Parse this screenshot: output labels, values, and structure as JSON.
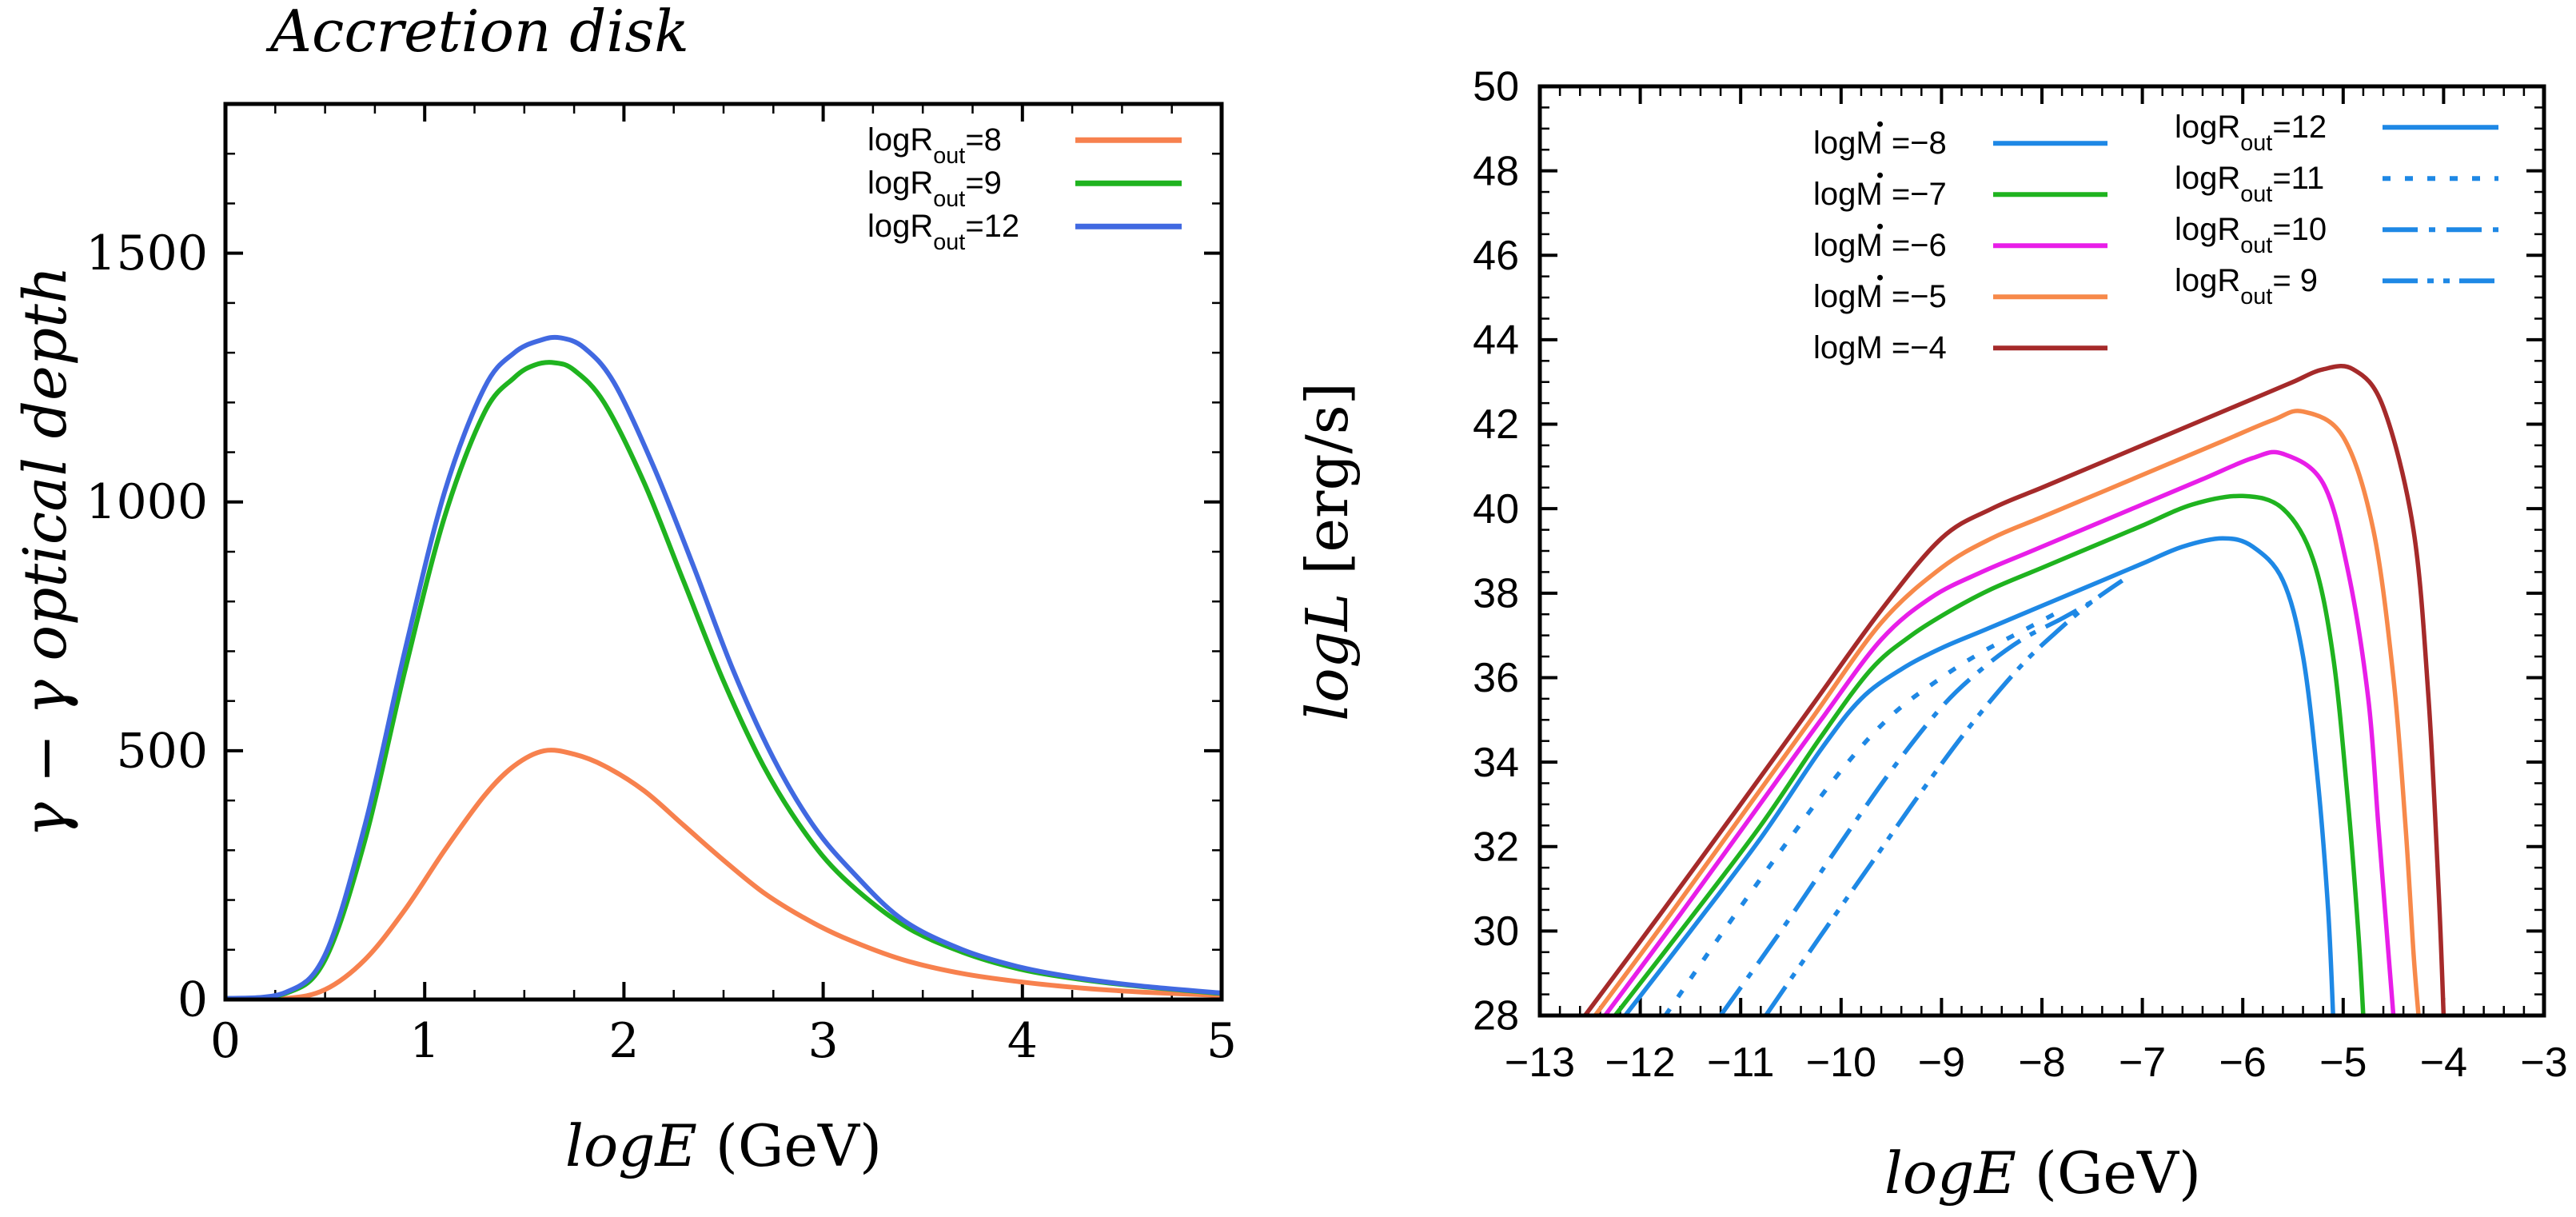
{
  "chart_data": [
    {
      "type": "line",
      "title": "Accretion disk",
      "xlabel_math": "logE",
      "xlabel_unit": " (GeV)",
      "ylabel": "γ − γ optical depth",
      "xlim": [
        0,
        5
      ],
      "ylim": [
        0,
        1800
      ],
      "xticks": [
        0,
        1,
        2,
        3,
        4,
        5
      ],
      "yticks": [
        0,
        500,
        1000,
        1500
      ],
      "legend_position": "top-right",
      "series": [
        {
          "name": "logRout=8",
          "legend_main": "logR",
          "legend_sub": "out",
          "legend_tail": "=8",
          "color": "#f7814e",
          "dash": "solid",
          "peak_x": 1.6,
          "peak_y": 500,
          "x": [
            0,
            0.3,
            0.5,
            0.7,
            0.9,
            1.1,
            1.3,
            1.45,
            1.6,
            1.75,
            1.9,
            2.1,
            2.3,
            2.5,
            2.7,
            2.9,
            3.1,
            3.4,
            3.7,
            4.0,
            4.3,
            4.6,
            5.0
          ],
          "y": [
            0,
            2,
            20,
            80,
            180,
            300,
            410,
            470,
            500,
            493,
            470,
            420,
            350,
            280,
            215,
            165,
            125,
            80,
            52,
            35,
            23,
            15,
            8
          ]
        },
        {
          "name": "logRout=9",
          "legend_main": "logR",
          "legend_sub": "out",
          "legend_tail": "=9",
          "color": "#1fb31f",
          "dash": "solid",
          "peak_x": 1.65,
          "peak_y": 1280,
          "x": [
            0,
            0.3,
            0.5,
            0.7,
            0.9,
            1.1,
            1.3,
            1.45,
            1.55,
            1.65,
            1.75,
            1.9,
            2.1,
            2.3,
            2.5,
            2.7,
            2.9,
            3.1,
            3.4,
            3.7,
            4.0,
            4.3,
            4.6,
            5.0
          ],
          "y": [
            2,
            12,
            80,
            320,
            660,
            970,
            1180,
            1250,
            1275,
            1280,
            1265,
            1200,
            1040,
            840,
            640,
            470,
            340,
            245,
            150,
            95,
            60,
            40,
            26,
            12
          ]
        },
        {
          "name": "logRout=12",
          "legend_main": "logR",
          "legend_sub": "out",
          "legend_tail": "=12",
          "color": "#4169e1",
          "dash": "solid",
          "peak_x": 1.68,
          "peak_y": 1330,
          "x": [
            0,
            0.3,
            0.5,
            0.7,
            0.9,
            1.1,
            1.3,
            1.45,
            1.58,
            1.68,
            1.8,
            1.95,
            2.15,
            2.35,
            2.55,
            2.75,
            2.95,
            3.15,
            3.4,
            3.7,
            4.0,
            4.3,
            4.6,
            5.0
          ],
          "y": [
            2,
            14,
            90,
            350,
            700,
            1020,
            1230,
            1300,
            1325,
            1330,
            1310,
            1240,
            1070,
            870,
            660,
            485,
            350,
            255,
            160,
            100,
            64,
            42,
            27,
            13
          ]
        }
      ]
    },
    {
      "type": "line",
      "title": "",
      "xlabel_math": "logE",
      "xlabel_unit": " (GeV)",
      "ylabel_math": "logL",
      "ylabel_unit": " [erg/s]",
      "xlim": [
        -13,
        -3
      ],
      "ylim": [
        28,
        50
      ],
      "xticks": [
        -13,
        -12,
        -11,
        -10,
        -9,
        -8,
        -7,
        -6,
        -5,
        -4,
        -3
      ],
      "xticklabels": [
        "−13",
        "−12",
        "−11",
        "−10",
        "−9",
        "−8",
        "−7",
        "−6",
        "−5",
        "−4",
        "−3"
      ],
      "yticks": [
        28,
        30,
        32,
        34,
        36,
        38,
        40,
        42,
        44,
        46,
        48,
        50
      ],
      "legend_position": "top",
      "series": [
        {
          "name": "logṀ =−8",
          "legend_main": "logM",
          "legend_tail": " =−8",
          "color": "#1e88e5",
          "dash": "solid",
          "x": [
            -12.15,
            -11.5,
            -10.8,
            -10.2,
            -9.8,
            -9.4,
            -9.0,
            -8.6,
            -8.2,
            -7.8,
            -7.4,
            -7.0,
            -6.6,
            -6.2,
            -5.9,
            -5.6,
            -5.4,
            -5.25,
            -5.15,
            -5.1
          ],
          "y": [
            28,
            30.0,
            32.2,
            34.3,
            35.5,
            36.2,
            36.7,
            37.1,
            37.5,
            37.9,
            38.3,
            38.7,
            39.1,
            39.3,
            39.1,
            38.3,
            36.5,
            33.5,
            30.5,
            28
          ]
        },
        {
          "name": "logṀ =−7",
          "legend_main": "logM",
          "legend_tail": " =−7",
          "color": "#1fb31f",
          "dash": "solid",
          "x": [
            -12.25,
            -11.5,
            -10.8,
            -10.2,
            -9.7,
            -9.3,
            -8.9,
            -8.5,
            -8.0,
            -7.5,
            -7.0,
            -6.5,
            -6.0,
            -5.6,
            -5.3,
            -5.1,
            -4.95,
            -4.85,
            -4.8
          ],
          "y": [
            28,
            30.3,
            32.5,
            34.6,
            36.2,
            37.0,
            37.6,
            38.1,
            38.6,
            39.1,
            39.6,
            40.1,
            40.3,
            40.0,
            38.8,
            36.5,
            33.0,
            30.0,
            28
          ]
        },
        {
          "name": "logṀ =−6",
          "legend_main": "logM",
          "legend_tail": " =−6",
          "color": "#e81ee8",
          "dash": "solid",
          "x": [
            -12.35,
            -11.6,
            -10.9,
            -10.2,
            -9.6,
            -9.1,
            -8.6,
            -8.1,
            -7.5,
            -7.0,
            -6.4,
            -5.9,
            -5.6,
            -5.2,
            -4.95,
            -4.75,
            -4.65,
            -4.55,
            -4.5
          ],
          "y": [
            28,
            30.4,
            32.7,
            35.0,
            36.9,
            37.9,
            38.5,
            39.0,
            39.6,
            40.1,
            40.7,
            41.2,
            41.3,
            40.6,
            38.5,
            35.5,
            32.5,
            29.5,
            28
          ]
        },
        {
          "name": "logṀ =−5",
          "legend_main": "logM",
          "legend_tail": " =−5",
          "color": "#f7894a",
          "dash": "solid",
          "x": [
            -12.45,
            -11.7,
            -11.0,
            -10.3,
            -9.6,
            -9.0,
            -8.5,
            -8.0,
            -7.4,
            -6.8,
            -6.2,
            -5.7,
            -5.4,
            -5.0,
            -4.7,
            -4.5,
            -4.38,
            -4.3,
            -4.25
          ],
          "y": [
            28,
            30.4,
            32.7,
            35.0,
            37.3,
            38.6,
            39.3,
            39.8,
            40.4,
            41.0,
            41.6,
            42.1,
            42.3,
            41.7,
            39.5,
            36.0,
            32.5,
            29.5,
            28
          ]
        },
        {
          "name": "logṀ =−4",
          "legend_main": "logM",
          "legend_tail": " =−4",
          "color": "#a52a2a",
          "dash": "solid",
          "x": [
            -12.55,
            -11.8,
            -11.0,
            -10.3,
            -9.6,
            -9.0,
            -8.5,
            -8.0,
            -7.5,
            -6.9,
            -6.3,
            -5.8,
            -5.5,
            -5.2,
            -4.9,
            -4.6,
            -4.3,
            -4.15,
            -4.05,
            -4.0
          ],
          "y": [
            28,
            30.4,
            33.0,
            35.3,
            37.6,
            39.3,
            40.0,
            40.5,
            41.0,
            41.6,
            42.2,
            42.7,
            43.0,
            43.3,
            43.3,
            42.4,
            39.5,
            35.5,
            31.0,
            28
          ]
        },
        {
          "name": "logRout=11",
          "legend_main": "logR",
          "legend_sub": "out",
          "legend_tail": "=11",
          "color": "#1e88e5",
          "dash": "10 18",
          "x": [
            -11.75,
            -11.2,
            -10.6,
            -10.0,
            -9.5,
            -9.0,
            -8.6,
            -8.2,
            -7.8
          ],
          "y": [
            28,
            29.9,
            31.9,
            33.8,
            35.1,
            36.0,
            36.6,
            37.1,
            37.6
          ]
        },
        {
          "name": "logRout=10",
          "legend_main": "logR",
          "legend_sub": "out",
          "legend_tail": "=10",
          "color": "#1e88e5",
          "dash": "44 14 8 14",
          "x": [
            -11.2,
            -10.6,
            -10.0,
            -9.5,
            -9.0,
            -8.6,
            -8.2,
            -7.8,
            -7.5
          ],
          "y": [
            28,
            30.0,
            32.1,
            33.8,
            35.3,
            36.2,
            36.9,
            37.4,
            37.8
          ]
        },
        {
          "name": "logRout= 9",
          "legend_main": "logR",
          "legend_sub": "out",
          "legend_tail": "=  9",
          "color": "#1e88e5",
          "dash": "44 12 8 12 8 12",
          "x": [
            -10.75,
            -10.2,
            -9.7,
            -9.2,
            -8.7,
            -8.2,
            -7.8,
            -7.5,
            -7.2
          ],
          "y": [
            28,
            29.9,
            31.6,
            33.3,
            34.9,
            36.3,
            37.2,
            37.8,
            38.3
          ]
        }
      ],
      "legend_extra": {
        "name": "logRout=12",
        "legend_main": "logR",
        "legend_sub": "out",
        "legend_tail": "=12",
        "color": "#1e88e5",
        "dash": "solid"
      }
    }
  ]
}
